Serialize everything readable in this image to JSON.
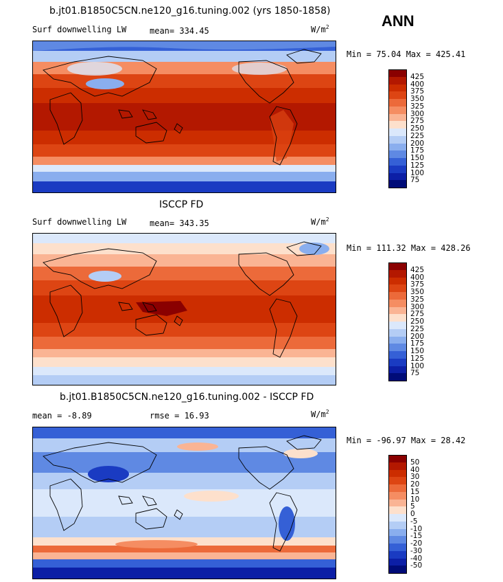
{
  "season": "ANN",
  "panels": [
    {
      "title": "b.jt01.B1850C5CN.ne120_g16.tuning.002 (yrs 1850-1858)",
      "left_label": "Surf downwelling LW",
      "stat_label": "mean= 334.45",
      "units_base": "W/m",
      "units_exp": "2",
      "minmax": "Min =  75.04 Max = 425.41",
      "colorbar_ticks": [
        "425",
        "400",
        "375",
        "350",
        "325",
        "300",
        "275",
        "250",
        "225",
        "200",
        "175",
        "150",
        "125",
        "100",
        "75"
      ],
      "colors": [
        "#8a0000",
        "#b31800",
        "#cc2d00",
        "#dd4513",
        "#ec6a3a",
        "#f58d62",
        "#fab494",
        "#fde0cc",
        "#dbe8fb",
        "#b4cdf5",
        "#8aaeee",
        "#5f89e3",
        "#3560d6",
        "#1a3bc2",
        "#0c1fa6",
        "#000c78"
      ]
    },
    {
      "title": "ISCCP FD",
      "left_label": "Surf downwelling LW",
      "stat_label": "mean= 343.35",
      "units_base": "W/m",
      "units_exp": "2",
      "minmax": "Min = 111.32 Max = 428.26",
      "colorbar_ticks": [
        "425",
        "400",
        "375",
        "350",
        "325",
        "300",
        "275",
        "250",
        "225",
        "200",
        "175",
        "150",
        "125",
        "100",
        "75"
      ],
      "colors": [
        "#8a0000",
        "#b31800",
        "#cc2d00",
        "#dd4513",
        "#ec6a3a",
        "#f58d62",
        "#fab494",
        "#fde0cc",
        "#dbe8fb",
        "#b4cdf5",
        "#8aaeee",
        "#5f89e3",
        "#3560d6",
        "#1a3bc2",
        "#0c1fa6",
        "#000c78"
      ]
    },
    {
      "title": "b.jt01.B1850C5CN.ne120_g16.tuning.002 - ISCCP FD",
      "left_label": "mean =  -8.89",
      "stat_label": "rmse =  16.93",
      "units_base": "W/m",
      "units_exp": "2",
      "minmax": "Min = -96.97 Max =  28.42",
      "colorbar_ticks": [
        "50",
        "40",
        "30",
        "20",
        "15",
        "10",
        "5",
        "0",
        "-5",
        "-10",
        "-15",
        "-20",
        "-30",
        "-40",
        "-50"
      ],
      "colors": [
        "#8a0000",
        "#b31800",
        "#cc2d00",
        "#dd4513",
        "#ec6a3a",
        "#f58d62",
        "#fab494",
        "#fde0cc",
        "#dbe8fb",
        "#b4cdf5",
        "#8aaeee",
        "#5f89e3",
        "#3560d6",
        "#1a3bc2",
        "#0c1fa6",
        "#000c78"
      ]
    }
  ]
}
